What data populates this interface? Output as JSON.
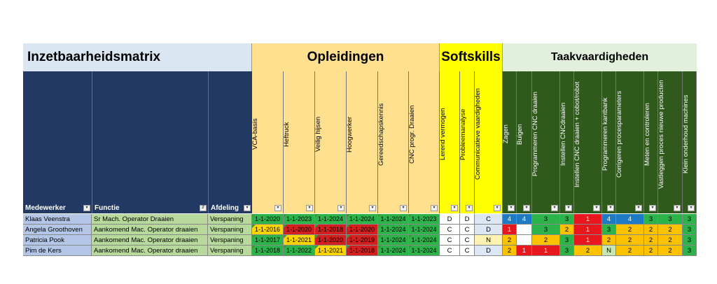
{
  "headers": {
    "title": "Inzetbaarheidsmatrix",
    "opleidingen": "Opleidingen",
    "softskills": "Softskills",
    "taakvaardigheden": "Taakvaardigheden"
  },
  "field_headers": {
    "medewerker": "Medewerker",
    "functie": "Functie",
    "afdeling": "Afdeling"
  },
  "filter_glyph": "▾",
  "sort_filter_glyph": "⇵",
  "skill_columns": [
    {
      "label": "VCA-basis",
      "group": "opleidingen"
    },
    {
      "label": "Heftruck",
      "group": "opleidingen"
    },
    {
      "label": "Veilig hijsen",
      "group": "opleidingen"
    },
    {
      "label": "Hoogwerker",
      "group": "opleidingen"
    },
    {
      "label": "Gereedschapskennis",
      "group": "opleidingen"
    },
    {
      "label": "CNC progr. Draaien",
      "group": "opleidingen"
    },
    {
      "label": "Lerend vermogen",
      "group": "softskills"
    },
    {
      "label": "Probleemanalyse",
      "group": "softskills"
    },
    {
      "label": "Communicatieve vaardigheden",
      "group": "softskills"
    },
    {
      "label": "Zagen",
      "group": "taak"
    },
    {
      "label": "Buigen",
      "group": "taak"
    },
    {
      "label": "Programmeren CNC draaien",
      "group": "taak"
    },
    {
      "label": "Instellen CNCdraaien",
      "group": "taak"
    },
    {
      "label": "Instellen CNC draaien + cobot/robot",
      "group": "taak"
    },
    {
      "label": "Programmeren kantbank",
      "group": "taak"
    },
    {
      "label": "Corrigeren procesparameters",
      "group": "taak"
    },
    {
      "label": "Meten en controleren",
      "group": "taak"
    },
    {
      "label": "Vastleggen proces nieuwe producten",
      "group": "taak"
    },
    {
      "label": "Klein onderhoud machines",
      "group": "taak"
    }
  ],
  "rows": [
    {
      "medewerker": "Klaas Veenstra",
      "functie": "Sr Mach. Operator Draaien",
      "afdeling": "Verspaning",
      "opleidingen": [
        {
          "v": "1-1-2020",
          "c": "#2cb34a"
        },
        {
          "v": "1-1-2023",
          "c": "#2cb34a"
        },
        {
          "v": "1-1-2024",
          "c": "#2cb34a"
        },
        {
          "v": "1-1-2024",
          "c": "#2cb34a"
        },
        {
          "v": "1-1-2024",
          "c": "#2cb34a"
        },
        {
          "v": "1-1-2023",
          "c": "#2cb34a"
        }
      ],
      "softskills": [
        {
          "v": "D",
          "c": "#ffffff"
        },
        {
          "v": "D",
          "c": "#ffffff"
        },
        {
          "v": "C",
          "c": "#dde7f4"
        }
      ],
      "taak": [
        {
          "v": "4",
          "c": "#1f7ac4"
        },
        {
          "v": "4",
          "c": "#1f7ac4"
        },
        {
          "v": "3",
          "c": "#2cb34a"
        },
        {
          "v": "3",
          "c": "#2cb34a"
        },
        {
          "v": "1",
          "c": "#e8161d"
        },
        {
          "v": "4",
          "c": "#1f7ac4"
        },
        {
          "v": "4",
          "c": "#1f7ac4"
        },
        {
          "v": "3",
          "c": "#2cb34a"
        },
        {
          "v": "3",
          "c": "#2cb34a"
        },
        {
          "v": "3",
          "c": "#2cb34a"
        }
      ]
    },
    {
      "medewerker": "Angela Groothoven",
      "functie": "Aankomend Mac. Operator draaien",
      "afdeling": "Verspaning",
      "opleidingen": [
        {
          "v": "1-1-2016",
          "c": "#fcd500"
        },
        {
          "v": "1-1-2020",
          "c": "#d31f1f"
        },
        {
          "v": "1-1-2018",
          "c": "#d31f1f"
        },
        {
          "v": "1-1-2020",
          "c": "#d31f1f"
        },
        {
          "v": "1-1-2024",
          "c": "#2cb34a"
        },
        {
          "v": "1-1-2024",
          "c": "#2cb34a"
        }
      ],
      "softskills": [
        {
          "v": "C",
          "c": "#ffffff"
        },
        {
          "v": "C",
          "c": "#ffffff"
        },
        {
          "v": "D",
          "c": "#dde7f4"
        }
      ],
      "taak": [
        {
          "v": "1",
          "c": "#e8161d"
        },
        {
          "v": "",
          "c": "#ffffff"
        },
        {
          "v": "3",
          "c": "#2cb34a"
        },
        {
          "v": "2",
          "c": "#fcc200"
        },
        {
          "v": "1",
          "c": "#e8161d"
        },
        {
          "v": "3",
          "c": "#2cb34a"
        },
        {
          "v": "2",
          "c": "#fcc200"
        },
        {
          "v": "2",
          "c": "#fcc200"
        },
        {
          "v": "2",
          "c": "#fcc200"
        },
        {
          "v": "3",
          "c": "#2cb34a"
        }
      ]
    },
    {
      "medewerker": "Patricia Pook",
      "functie": "Aankomend Mac. Operator draaien",
      "afdeling": "Verspaning",
      "opleidingen": [
        {
          "v": "1-1-2017",
          "c": "#2cb34a"
        },
        {
          "v": "1-1-2021",
          "c": "#fcd500"
        },
        {
          "v": "1-1-2020",
          "c": "#d31f1f"
        },
        {
          "v": "1-1-2019",
          "c": "#d31f1f"
        },
        {
          "v": "1-1-2024",
          "c": "#2cb34a"
        },
        {
          "v": "1-1-2024",
          "c": "#2cb34a"
        }
      ],
      "softskills": [
        {
          "v": "C",
          "c": "#ffffff"
        },
        {
          "v": "C",
          "c": "#ffffff"
        },
        {
          "v": "N",
          "c": "#fff2b3"
        }
      ],
      "taak": [
        {
          "v": "2",
          "c": "#fcc200"
        },
        {
          "v": "",
          "c": "#ffffff"
        },
        {
          "v": "2",
          "c": "#fcc200"
        },
        {
          "v": "3",
          "c": "#2cb34a"
        },
        {
          "v": "1",
          "c": "#e8161d"
        },
        {
          "v": "2",
          "c": "#fcc200"
        },
        {
          "v": "2",
          "c": "#fcc200"
        },
        {
          "v": "2",
          "c": "#fcc200"
        },
        {
          "v": "2",
          "c": "#fcc200"
        },
        {
          "v": "3",
          "c": "#2cb34a"
        }
      ]
    },
    {
      "medewerker": "Pim de Kers",
      "functie": "Aankomend Mac. Operator draaien",
      "afdeling": "Verspaning",
      "opleidingen": [
        {
          "v": "1-1-2018",
          "c": "#2cb34a"
        },
        {
          "v": "1-1-2022",
          "c": "#2cb34a"
        },
        {
          "v": "1-1-2021",
          "c": "#fcd500"
        },
        {
          "v": "1-1-2018",
          "c": "#d31f1f"
        },
        {
          "v": "1-1-2024",
          "c": "#2cb34a"
        },
        {
          "v": "1-1-2024",
          "c": "#2cb34a"
        }
      ],
      "softskills": [
        {
          "v": "C",
          "c": "#ffffff"
        },
        {
          "v": "C",
          "c": "#ffffff"
        },
        {
          "v": "D",
          "c": "#dde7f4"
        }
      ],
      "taak": [
        {
          "v": "2",
          "c": "#fcc200"
        },
        {
          "v": "1",
          "c": "#e8161d"
        },
        {
          "v": "1",
          "c": "#e8161d"
        },
        {
          "v": "3",
          "c": "#2cb34a"
        },
        {
          "v": "2",
          "c": "#fcc200"
        },
        {
          "v": "N",
          "c": "#c8e6b4"
        },
        {
          "v": "2",
          "c": "#fcc200"
        },
        {
          "v": "2",
          "c": "#fcc200"
        },
        {
          "v": "2",
          "c": "#fcc200"
        },
        {
          "v": "3",
          "c": "#2cb34a"
        }
      ]
    }
  ],
  "colors": {
    "title_bg": "#dae6f2",
    "field_header_bg": "#223a63",
    "opleidingen_bg": "#fee08f",
    "softskills_bg": "#ffff00",
    "taak_header_bg": "#e2efda",
    "taak_column_bg": "#2f5a1c",
    "name_cell_bg": "#b4c6e7",
    "functie_cell_bg": "#b7d99b",
    "afdeling_cell_bg": "#b7d99b"
  }
}
